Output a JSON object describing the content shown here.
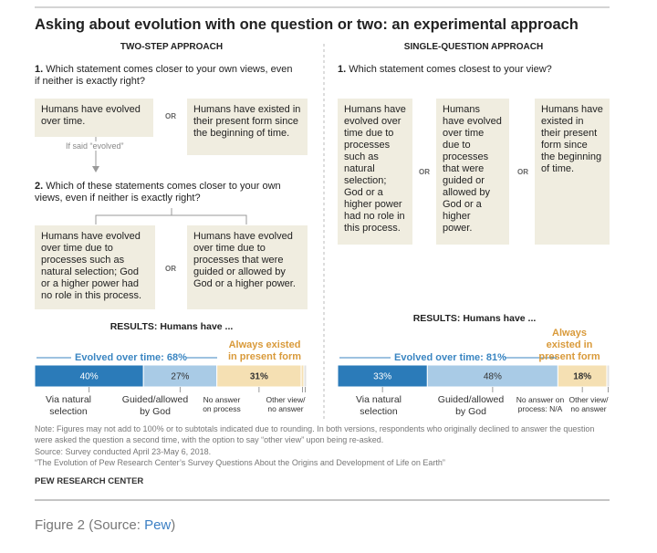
{
  "title": "Asking about evolution with one question or two: an experimental approach",
  "left": {
    "heading": "TWO-STEP APPROACH",
    "q1": {
      "number": "1.",
      "text": "Which statement comes closer to your own views, even if neither is exactly right?"
    },
    "q1_options": [
      "Humans have evolved over time.",
      "Humans have existed in their present form since the beginning of time."
    ],
    "or": "OR",
    "arrow_label": "If said “evolved”",
    "q2": {
      "number": "2.",
      "text": "Which of these statements comes closer to your own views, even if neither is exactly right?"
    },
    "q2_options": [
      "Humans have evolved over time due to processes such as natural selection; God or a higher power had no role in this process.",
      "Humans have evolved over time due to processes that were guided or allowed by God or a higher power."
    ],
    "results": {
      "title": "RESULTS: Humans have ...",
      "evolved": "Evolved over time: 68%",
      "existed": "Always existed in present form",
      "segments": [
        {
          "value": 40,
          "label": "40%",
          "color": "#2b7bb9",
          "category": "Via natural selection"
        },
        {
          "value": 27,
          "label": "27%",
          "color": "#a9cbe6",
          "category": "Guided/allowed by God"
        },
        {
          "value": 31,
          "label": "31%",
          "color": "#f5e0b3",
          "category": "Always existed"
        },
        {
          "value": 1,
          "color": "#f5e0b3",
          "category": "No answer on process"
        },
        {
          "value": 1,
          "color": "#e2e2e2",
          "category": "Other view/ no answer"
        }
      ]
    }
  },
  "right": {
    "heading": "SINGLE-QUESTION APPROACH",
    "q1": {
      "number": "1.",
      "text": "Which statement comes closest to your view?"
    },
    "options": [
      "Humans have evolved over time due to processes such as natural selection; God or a higher power had no role in this process.",
      "Humans have evolved over time due to processes that were guided or allowed by God or a higher power.",
      "Humans have existed in their present form since the beginning of time."
    ],
    "or": "OR",
    "results": {
      "title": "RESULTS: Humans have ...",
      "evolved": "Evolved over time: 81%",
      "existed": "Always existed in present form",
      "segments": [
        {
          "value": 33,
          "label": "33%",
          "color": "#2b7bb9",
          "category": "Via natural selection"
        },
        {
          "value": 48,
          "label": "48%",
          "color": "#a9cbe6",
          "category": "Guided/allowed by God"
        },
        {
          "value": 18,
          "label": "18%",
          "color": "#f5e0b3",
          "category": "Always existed"
        },
        {
          "value": 1,
          "color": "#e2e2e2",
          "category": "Other view/ no answer"
        }
      ],
      "no_answer": "No answer on process: N/A"
    }
  },
  "note": "Note: Figures may not add to 100% or to subtotals indicated due to rounding. In both versions, respondents who originally declined to answer the question were asked the question a second time, with the option to say “other view” upon being re-asked.",
  "source": "Source: Survey conducted April 23-May 6, 2018.",
  "citation": "“The Evolution of Pew Research Center’s Survey Questions About the Origins and Development of Life on Earth”",
  "brand": "PEW RESEARCH CENTER",
  "caption": {
    "prefix": "Figure 2 (Source: ",
    "link": "Pew",
    "suffix": ")"
  }
}
